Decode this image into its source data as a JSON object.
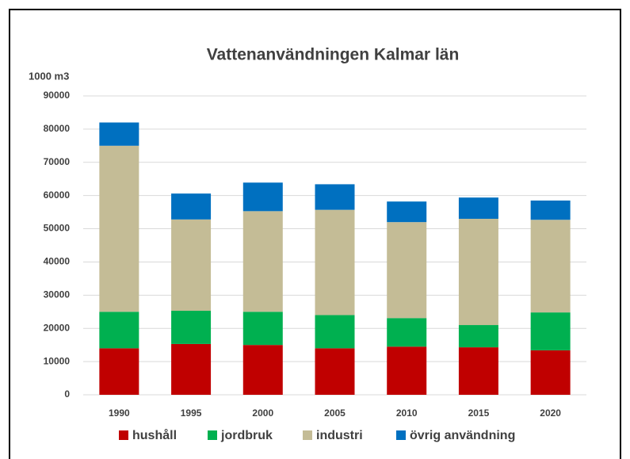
{
  "chart_data": {
    "type": "stacked_bar",
    "title": "Vattenanvändningen Kalmar län",
    "y_label": "1000 m3",
    "categories": [
      "1990",
      "1995",
      "2000",
      "2005",
      "2010",
      "2015",
      "2020"
    ],
    "series": [
      {
        "name": "hushåll",
        "color": "#c00000",
        "values": [
          14000,
          15300,
          15000,
          14000,
          14500,
          14300,
          13400
        ]
      },
      {
        "name": "jordbruk",
        "color": "#00b050",
        "values": [
          11000,
          10000,
          10000,
          10000,
          8600,
          6700,
          11400
        ]
      },
      {
        "name": "industri",
        "color": "#c4bc96",
        "values": [
          50000,
          27500,
          30300,
          31700,
          28900,
          32000,
          27900
        ]
      },
      {
        "name": "övrig användning",
        "color": "#0070c0",
        "values": [
          7000,
          7800,
          8600,
          7700,
          6200,
          6400,
          5800
        ]
      }
    ],
    "ylim": [
      0,
      90000
    ],
    "yticks": [
      0,
      10000,
      20000,
      30000,
      40000,
      50000,
      60000,
      70000,
      80000,
      90000
    ],
    "grid": true,
    "legend": "bottom"
  }
}
